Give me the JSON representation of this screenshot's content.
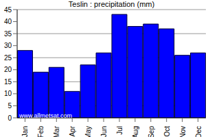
{
  "chart_data": {
    "type": "bar",
    "title": "Teslin : precipitation (mm)",
    "categories": [
      "Jan",
      "Feb",
      "Mar",
      "Apr",
      "May",
      "Jun",
      "Jul",
      "Aug",
      "Sep",
      "Oct",
      "Nov",
      "Dec"
    ],
    "values": [
      28,
      19,
      21,
      11,
      22,
      27,
      43,
      38,
      39,
      37,
      26,
      27
    ],
    "color": "#0000ff",
    "ylim": [
      0,
      45
    ],
    "yticks": [
      0,
      5,
      10,
      15,
      20,
      25,
      30,
      35,
      40,
      45
    ],
    "grid": true,
    "annotation": "www.allmetsat.com"
  }
}
